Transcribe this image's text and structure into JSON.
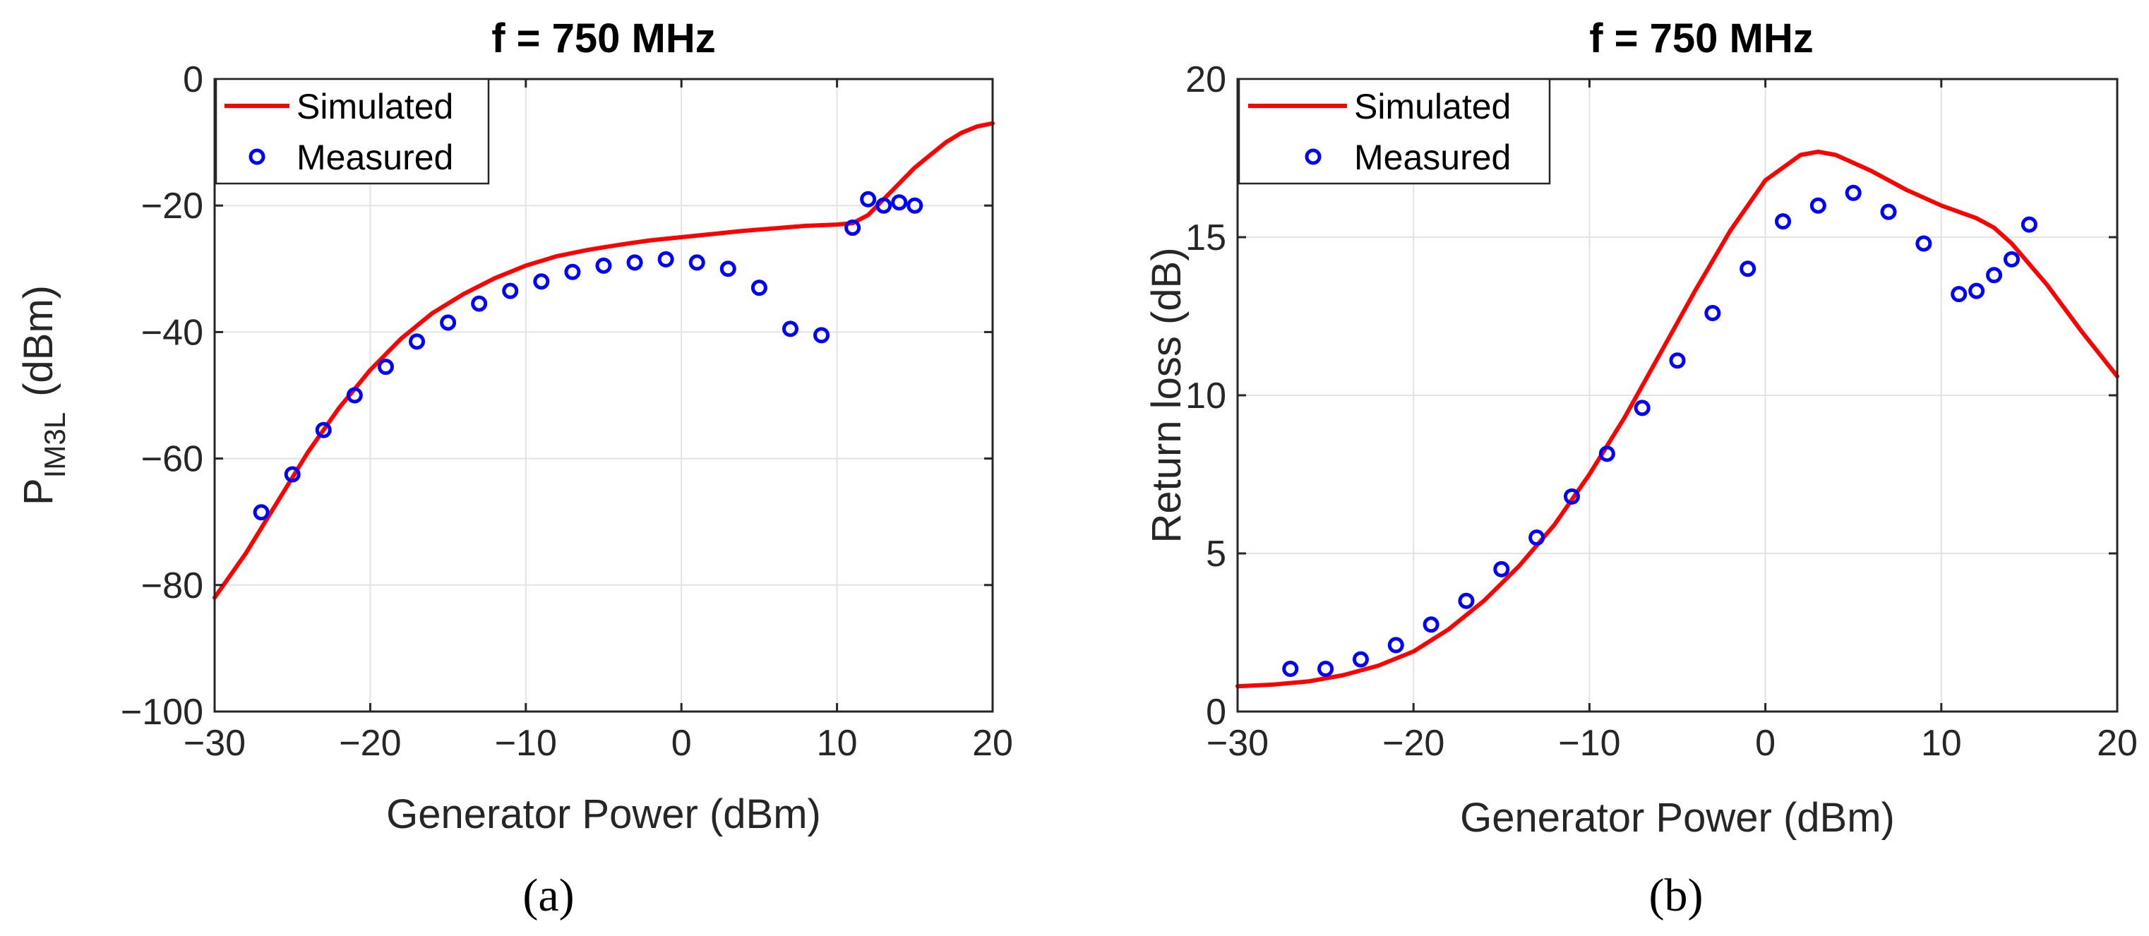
{
  "figure": {
    "captions": [
      "(a)",
      "(b)"
    ]
  },
  "chart_data": [
    {
      "type": "line",
      "title": "f = 750 MHz",
      "xlabel": "Generator Power (dBm)",
      "ylabel": "P",
      "ylabel_sub": "IM3L",
      "ylabel_unit": "(dBm)",
      "xlim": [
        -30,
        20
      ],
      "ylim": [
        -100,
        0
      ],
      "xticks": [
        -30,
        -20,
        -10,
        0,
        10,
        20
      ],
      "yticks": [
        -100,
        -80,
        -60,
        -40,
        -20,
        0
      ],
      "xtick_labels": [
        "−30",
        "−20",
        "−10",
        "0",
        "10",
        "20"
      ],
      "ytick_labels": [
        "−100",
        "−80",
        "−60",
        "−40",
        "−20",
        "0"
      ],
      "grid": true,
      "legend_position": "top-left",
      "series": [
        {
          "name": "Simulated",
          "style": "line",
          "color": "#ff0000",
          "x": [
            -30,
            -28,
            -26,
            -24,
            -22,
            -20,
            -18,
            -16,
            -14,
            -12,
            -10,
            -8,
            -6,
            -4,
            -2,
            0,
            2,
            4,
            6,
            8,
            10,
            11,
            12,
            13,
            14,
            15,
            16,
            17,
            18,
            19,
            20
          ],
          "y": [
            -82,
            -75,
            -67,
            -59,
            -52,
            -46,
            -41,
            -37,
            -34,
            -31.5,
            -29.5,
            -28,
            -27,
            -26.2,
            -25.5,
            -25,
            -24.5,
            -24,
            -23.6,
            -23.2,
            -23,
            -22.8,
            -21.5,
            -19,
            -16.5,
            -14,
            -12,
            -10,
            -8.5,
            -7.5,
            -7
          ]
        },
        {
          "name": "Measured",
          "style": "marker",
          "color": "#0000ff",
          "x": [
            -27,
            -25,
            -23,
            -21,
            -19,
            -17,
            -15,
            -13,
            -11,
            -9,
            -7,
            -5,
            -3,
            -1,
            1,
            3,
            5,
            7,
            9,
            11,
            12,
            13,
            14,
            15
          ],
          "y": [
            -68.5,
            -62.5,
            -55.5,
            -50,
            -45.5,
            -41.5,
            -38.5,
            -35.5,
            -33.5,
            -32,
            -30.5,
            -29.5,
            -29,
            -28.5,
            -29,
            -30,
            -33,
            -39.5,
            -40.5,
            -23.5,
            -19,
            -20,
            -19.5,
            -20
          ]
        }
      ]
    },
    {
      "type": "line",
      "title": "f = 750 MHz",
      "xlabel": "Generator Power (dBm)",
      "ylabel": "Return loss (dB)",
      "xlim": [
        -30,
        20
      ],
      "ylim": [
        0,
        20
      ],
      "xticks": [
        -30,
        -20,
        -10,
        0,
        10,
        20
      ],
      "yticks": [
        0,
        5,
        10,
        15,
        20
      ],
      "xtick_labels": [
        "−30",
        "−20",
        "−10",
        "0",
        "10",
        "20"
      ],
      "ytick_labels": [
        "0",
        "5",
        "10",
        "15",
        "20"
      ],
      "grid": true,
      "legend_position": "top-left",
      "series": [
        {
          "name": "Simulated",
          "style": "line",
          "color": "#ff0000",
          "x": [
            -30,
            -28,
            -26,
            -24,
            -22,
            -20,
            -18,
            -16,
            -14,
            -12,
            -10,
            -8,
            -6,
            -4,
            -2,
            0,
            2,
            3,
            4,
            6,
            8,
            10,
            12,
            13,
            14,
            16,
            18,
            20
          ],
          "y": [
            0.8,
            0.85,
            0.95,
            1.15,
            1.45,
            1.9,
            2.6,
            3.5,
            4.6,
            5.9,
            7.5,
            9.3,
            11.3,
            13.3,
            15.2,
            16.8,
            17.6,
            17.7,
            17.6,
            17.1,
            16.5,
            16,
            15.6,
            15.3,
            14.8,
            13.5,
            12,
            10.6
          ]
        },
        {
          "name": "Measured",
          "style": "marker",
          "color": "#0000ff",
          "x": [
            -27,
            -25,
            -23,
            -21,
            -19,
            -17,
            -15,
            -13,
            -11,
            -9,
            -7,
            -5,
            -3,
            -1,
            1,
            3,
            5,
            7,
            9,
            11,
            12,
            13,
            14,
            15
          ],
          "y": [
            1.35,
            1.35,
            1.65,
            2.1,
            2.75,
            3.5,
            4.5,
            5.5,
            6.8,
            8.15,
            9.6,
            11.1,
            12.6,
            14,
            15.5,
            16,
            16.4,
            15.8,
            14.8,
            13.2,
            13.3,
            13.8,
            14.3,
            15.4
          ]
        }
      ]
    }
  ]
}
